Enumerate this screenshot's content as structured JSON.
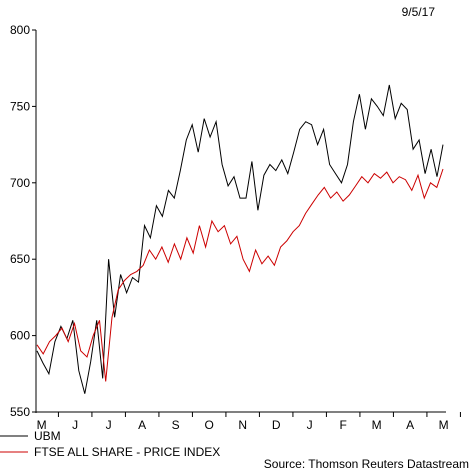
{
  "date": "9/5/17",
  "source": "Source: Thomson Reuters Datastream",
  "colors": {
    "UBM": "#000000",
    "FTSE": "#cc0000"
  },
  "chart_data": {
    "type": "line",
    "title": "",
    "xlabel": "",
    "ylabel": "",
    "ylim": [
      550,
      800
    ],
    "yticks": [
      550,
      600,
      650,
      700,
      750,
      800
    ],
    "x_ticks": [
      "M",
      "J",
      "J",
      "A",
      "S",
      "O",
      "N",
      "D",
      "J",
      "F",
      "M",
      "A",
      "M"
    ],
    "legend": [
      "UBM",
      "FTSE ALL SHARE - PRICE INDEX"
    ],
    "grid": false,
    "legend_position": "bottom-left",
    "series": [
      {
        "name": "UBM",
        "points": [
          [
            "May",
            590
          ],
          [
            "May",
            582
          ],
          [
            "May",
            575
          ],
          [
            "May",
            596
          ],
          [
            "Jun",
            606
          ],
          [
            "Jun",
            598
          ],
          [
            "Jun",
            610
          ],
          [
            "Jun",
            577
          ],
          [
            "Jun",
            562
          ],
          [
            "Jun",
            583
          ],
          [
            "Jun",
            610
          ],
          [
            "Jun",
            572
          ],
          [
            "Jul",
            650
          ],
          [
            "Jul",
            612
          ],
          [
            "Jul",
            640
          ],
          [
            "Jul",
            628
          ],
          [
            "Jul",
            638
          ],
          [
            "Jul",
            635
          ],
          [
            "Aug",
            672
          ],
          [
            "Aug",
            664
          ],
          [
            "Aug",
            685
          ],
          [
            "Aug",
            678
          ],
          [
            "Aug",
            695
          ],
          [
            "Sep",
            690
          ],
          [
            "Sep",
            708
          ],
          [
            "Sep",
            728
          ],
          [
            "Sep",
            738
          ],
          [
            "Sep",
            720
          ],
          [
            "Sep",
            742
          ],
          [
            "Oct",
            730
          ],
          [
            "Oct",
            740
          ],
          [
            "Oct",
            712
          ],
          [
            "Oct",
            698
          ],
          [
            "Oct",
            704
          ],
          [
            "Oct",
            690
          ],
          [
            "Nov",
            690
          ],
          [
            "Nov",
            714
          ],
          [
            "Nov",
            682
          ],
          [
            "Nov",
            705
          ],
          [
            "Nov",
            712
          ],
          [
            "Dec",
            708
          ],
          [
            "Dec",
            715
          ],
          [
            "Dec",
            706
          ],
          [
            "Dec",
            720
          ],
          [
            "Dec",
            735
          ],
          [
            "Dec",
            740
          ],
          [
            "Jan",
            738
          ],
          [
            "Jan",
            725
          ],
          [
            "Jan",
            735
          ],
          [
            "Jan",
            712
          ],
          [
            "Jan",
            706
          ],
          [
            "Feb",
            700
          ],
          [
            "Feb",
            712
          ],
          [
            "Feb",
            740
          ],
          [
            "Feb",
            758
          ],
          [
            "Feb",
            735
          ],
          [
            "Feb",
            755
          ],
          [
            "Mar",
            750
          ],
          [
            "Mar",
            744
          ],
          [
            "Mar",
            764
          ],
          [
            "Mar",
            742
          ],
          [
            "Mar",
            752
          ],
          [
            "Apr",
            748
          ],
          [
            "Apr",
            722
          ],
          [
            "Apr",
            728
          ],
          [
            "Apr",
            706
          ],
          [
            "Apr",
            722
          ],
          [
            "May",
            704
          ],
          [
            "May",
            725
          ]
        ]
      },
      {
        "name": "FTSE ALL SHARE - PRICE INDEX",
        "points": [
          [
            "May",
            594
          ],
          [
            "May",
            588
          ],
          [
            "May",
            596
          ],
          [
            "May",
            600
          ],
          [
            "Jun",
            605
          ],
          [
            "Jun",
            596
          ],
          [
            "Jun",
            608
          ],
          [
            "Jun",
            590
          ],
          [
            "Jun",
            586
          ],
          [
            "Jun",
            600
          ],
          [
            "Jun",
            610
          ],
          [
            "Jun",
            570
          ],
          [
            "Jul",
            612
          ],
          [
            "Jul",
            630
          ],
          [
            "Jul",
            636
          ],
          [
            "Jul",
            640
          ],
          [
            "Jul",
            642
          ],
          [
            "Jul",
            646
          ],
          [
            "Aug",
            656
          ],
          [
            "Aug",
            650
          ],
          [
            "Aug",
            658
          ],
          [
            "Aug",
            648
          ],
          [
            "Aug",
            660
          ],
          [
            "Sep",
            650
          ],
          [
            "Sep",
            664
          ],
          [
            "Sep",
            654
          ],
          [
            "Sep",
            672
          ],
          [
            "Sep",
            658
          ],
          [
            "Sep",
            675
          ],
          [
            "Oct",
            668
          ],
          [
            "Oct",
            672
          ],
          [
            "Oct",
            660
          ],
          [
            "Oct",
            665
          ],
          [
            "Oct",
            650
          ],
          [
            "Nov",
            642
          ],
          [
            "Nov",
            656
          ],
          [
            "Nov",
            647
          ],
          [
            "Nov",
            652
          ],
          [
            "Nov",
            646
          ],
          [
            "Dec",
            658
          ],
          [
            "Dec",
            662
          ],
          [
            "Dec",
            668
          ],
          [
            "Dec",
            672
          ],
          [
            "Dec",
            680
          ],
          [
            "Jan",
            686
          ],
          [
            "Jan",
            692
          ],
          [
            "Jan",
            697
          ],
          [
            "Jan",
            690
          ],
          [
            "Jan",
            694
          ],
          [
            "Feb",
            688
          ],
          [
            "Feb",
            692
          ],
          [
            "Feb",
            698
          ],
          [
            "Feb",
            704
          ],
          [
            "Feb",
            700
          ],
          [
            "Mar",
            706
          ],
          [
            "Mar",
            703
          ],
          [
            "Mar",
            707
          ],
          [
            "Mar",
            700
          ],
          [
            "Mar",
            704
          ],
          [
            "Apr",
            702
          ],
          [
            "Apr",
            695
          ],
          [
            "Apr",
            705
          ],
          [
            "Apr",
            690
          ],
          [
            "Apr",
            700
          ],
          [
            "May",
            697
          ],
          [
            "May",
            709
          ]
        ]
      }
    ]
  }
}
